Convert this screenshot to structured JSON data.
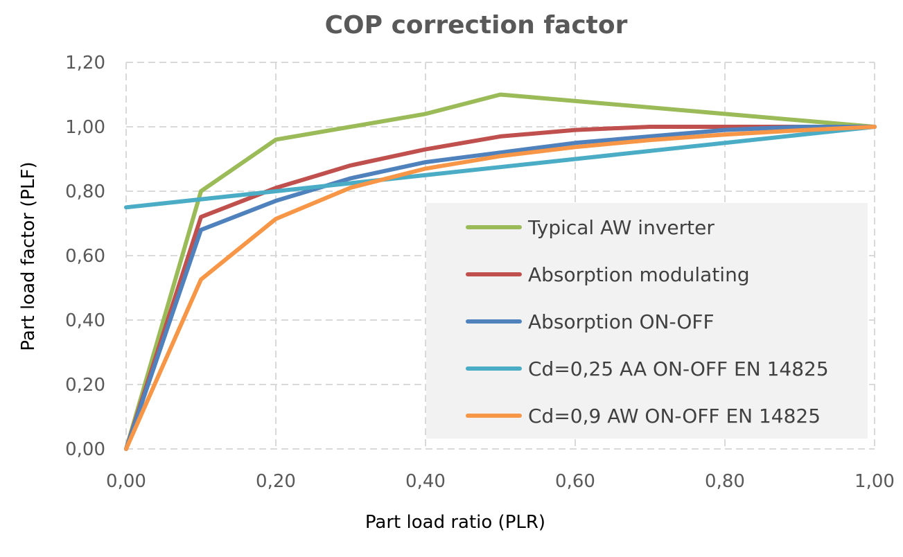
{
  "chart_data": {
    "type": "line",
    "title": "COP correction factor",
    "xlabel": "Part load ratio (PLR)",
    "ylabel": "Part load factor (PLF)",
    "xlim": [
      0,
      1
    ],
    "ylim": [
      0,
      1.2
    ],
    "x_ticks": [
      "0,00",
      "0,20",
      "0,40",
      "0,60",
      "0,80",
      "1,00"
    ],
    "y_ticks": [
      "0,00",
      "0,20",
      "0,40",
      "0,60",
      "0,80",
      "1,00",
      "1,20"
    ],
    "x_tick_values": [
      0,
      0.2,
      0.4,
      0.6,
      0.8,
      1.0
    ],
    "y_tick_values": [
      0,
      0.2,
      0.4,
      0.6,
      0.8,
      1.0,
      1.2
    ],
    "grid": true,
    "legend_position": "bottom-right",
    "series": [
      {
        "name": "Typical AW inverter",
        "color": "#9BBB59",
        "x": [
          0,
          0.1,
          0.2,
          0.3,
          0.4,
          0.5,
          1.0
        ],
        "y": [
          0,
          0.8,
          0.96,
          1.0,
          1.04,
          1.1,
          1.0
        ]
      },
      {
        "name": "Absorption modulating",
        "color": "#C0504D",
        "x": [
          0,
          0.1,
          0.2,
          0.3,
          0.4,
          0.5,
          0.6,
          0.7,
          0.8,
          0.9,
          1.0
        ],
        "y": [
          0,
          0.72,
          0.81,
          0.88,
          0.93,
          0.97,
          0.99,
          1.0,
          1.0,
          1.0,
          1.0
        ]
      },
      {
        "name": "Absorption ON-OFF",
        "color": "#4F81BD",
        "x": [
          0,
          0.1,
          0.2,
          0.3,
          0.4,
          0.5,
          0.6,
          0.7,
          0.8,
          0.9,
          1.0
        ],
        "y": [
          0,
          0.68,
          0.77,
          0.84,
          0.89,
          0.92,
          0.95,
          0.97,
          0.99,
          1.0,
          1.0
        ]
      },
      {
        "name": "Cd=0,25 AA ON-OFF EN 14825",
        "color": "#4BACC6",
        "x": [
          0,
          1.0
        ],
        "y": [
          0.75,
          1.0
        ]
      },
      {
        "name": "Cd=0,9 AW ON-OFF EN 14825",
        "color": "#F79646",
        "x": [
          0,
          0.1,
          0.2,
          0.3,
          0.4,
          0.5,
          0.6,
          0.7,
          0.8,
          0.9,
          1.0
        ],
        "y": [
          0,
          0.526,
          0.714,
          0.811,
          0.87,
          0.909,
          0.937,
          0.959,
          0.976,
          0.989,
          1.0
        ]
      }
    ]
  }
}
